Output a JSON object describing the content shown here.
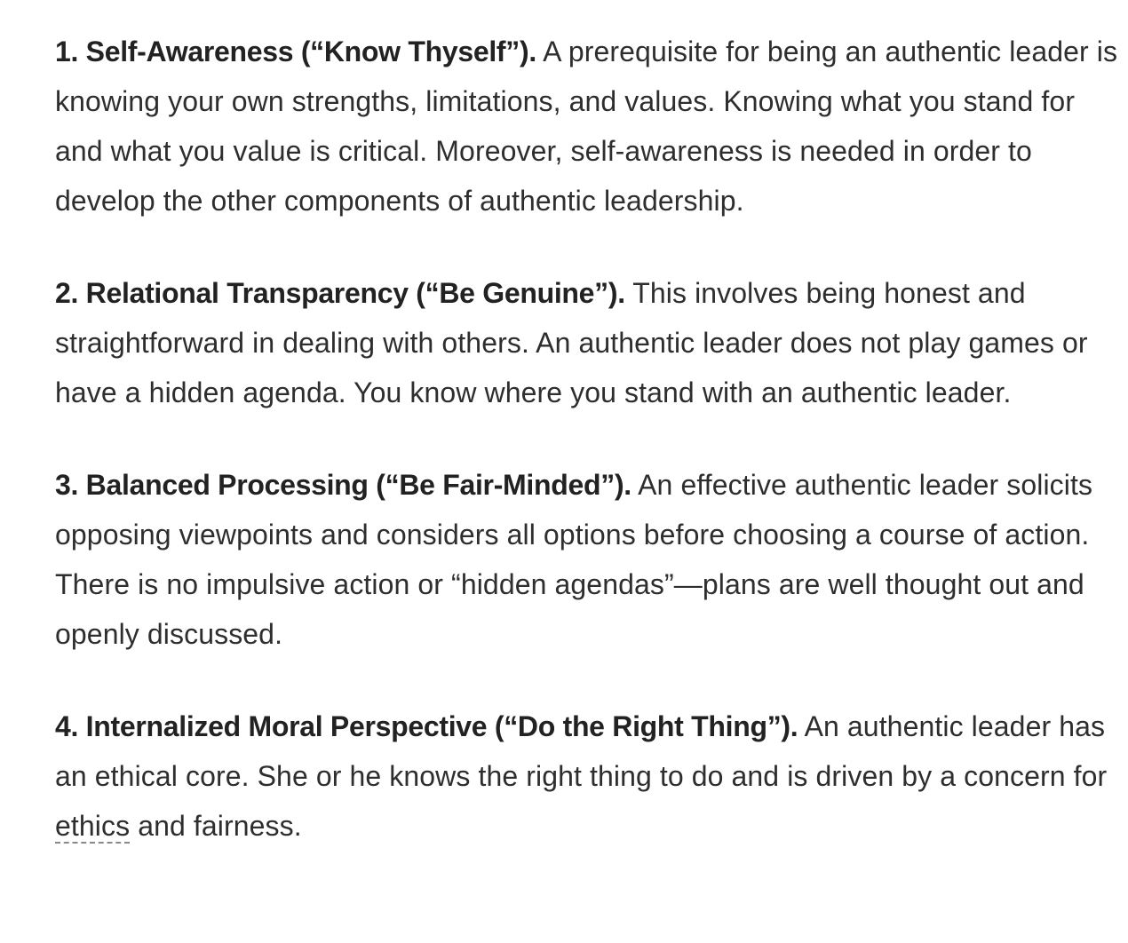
{
  "sections": [
    {
      "lead": "1. Self-Awareness (“Know Thyself”).",
      "body": " A prerequisite for being an authentic leader is knowing your own strengths, limitations, and values. Knowing what you stand for and what you value is critical. Moreover, self-awareness is needed in order to develop the other components of authentic leadership."
    },
    {
      "lead": "2. Relational Transparency (“Be Genuine”).",
      "body": " This involves being honest and straightforward in dealing with others. An authentic leader does not play games or have a hidden agenda. You know where you stand with an authentic leader."
    },
    {
      "lead": "3. Balanced Processing (“Be Fair-Minded”).",
      "body": " An effective authentic leader solicits opposing viewpoints and considers all options before choosing a course of action. There is no impulsive action or “hidden agendas”—plans are well thought out and openly discussed."
    },
    {
      "lead": "4. Internalized Moral Perspective (“Do the Right Thing”).",
      "body_before": " An authentic leader has an ethical core. She or he knows the right thing to do and is driven by a concern for ",
      "glossary_term": "ethics",
      "body_after": " and fairness."
    }
  ]
}
